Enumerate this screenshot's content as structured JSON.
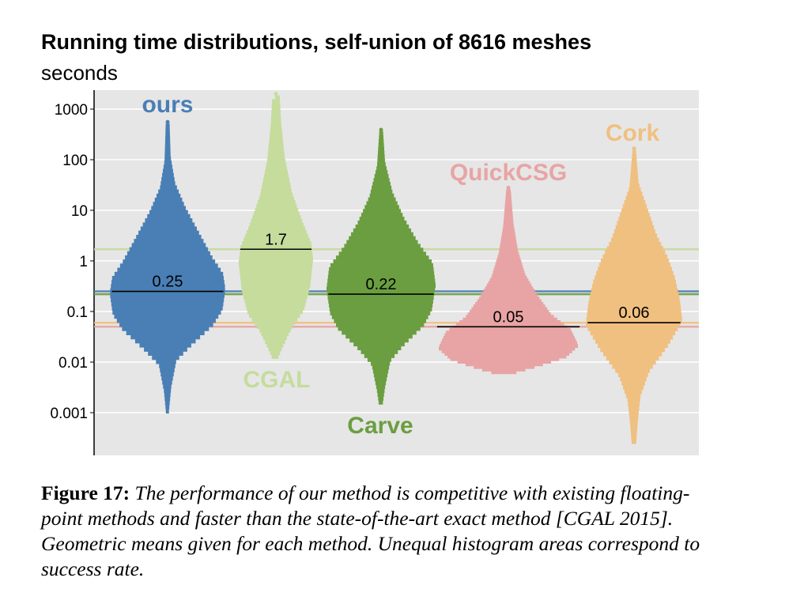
{
  "chart_data": {
    "type": "violin",
    "title": "Running time distributions, self-union of 8616 meshes",
    "subtitle": "seconds",
    "yscale": "log",
    "ylim": [
      0.0002,
      2000
    ],
    "yticks": [
      "0.001",
      "0.01",
      "0.1",
      "1",
      "10",
      "100",
      "1000"
    ],
    "ytick_values": [
      0.001,
      0.01,
      0.1,
      1,
      10,
      100,
      1000
    ],
    "grid": true,
    "series": [
      {
        "name": "ours",
        "color": "#4a7fb5",
        "mean": 0.25,
        "mean_label": "0.25",
        "min": 0.001,
        "max": 500,
        "profile": [
          [
            0.001,
            0.01
          ],
          [
            0.003,
            0.05
          ],
          [
            0.01,
            0.14
          ],
          [
            0.02,
            0.4
          ],
          [
            0.05,
            0.78
          ],
          [
            0.1,
            0.95
          ],
          [
            0.25,
            1.0
          ],
          [
            0.5,
            0.96
          ],
          [
            1,
            0.78
          ],
          [
            3,
            0.55
          ],
          [
            10,
            0.3
          ],
          [
            30,
            0.12
          ],
          [
            100,
            0.04
          ],
          [
            500,
            0.02
          ]
        ]
      },
      {
        "name": "CGAL",
        "color": "#c5dc9d",
        "mean": 1.7,
        "mean_label": "1.7",
        "min": 0.012,
        "max": 1800,
        "profile": [
          [
            0.012,
            0.05
          ],
          [
            0.02,
            0.18
          ],
          [
            0.05,
            0.45
          ],
          [
            0.1,
            0.75
          ],
          [
            0.3,
            0.92
          ],
          [
            1,
            1.0
          ],
          [
            2,
            0.95
          ],
          [
            5,
            0.72
          ],
          [
            20,
            0.42
          ],
          [
            100,
            0.22
          ],
          [
            500,
            0.12
          ],
          [
            1800,
            0.08
          ]
        ]
      },
      {
        "name": "Carve",
        "color": "#6b9e40",
        "mean": 0.22,
        "mean_label": "0.22",
        "min": 0.0015,
        "max": 350,
        "profile": [
          [
            0.0015,
            0.02
          ],
          [
            0.003,
            0.06
          ],
          [
            0.01,
            0.16
          ],
          [
            0.02,
            0.4
          ],
          [
            0.05,
            0.78
          ],
          [
            0.1,
            0.93
          ],
          [
            0.3,
            1.0
          ],
          [
            0.8,
            0.95
          ],
          [
            2,
            0.68
          ],
          [
            6,
            0.42
          ],
          [
            20,
            0.2
          ],
          [
            80,
            0.06
          ],
          [
            350,
            0.02
          ]
        ]
      },
      {
        "name": "QuickCSG",
        "color": "#e8a4a4",
        "mean": 0.05,
        "mean_label": "0.05",
        "min": 0.006,
        "max": 25,
        "profile": [
          [
            0.006,
            0.1
          ],
          [
            0.008,
            0.4
          ],
          [
            0.012,
            0.78
          ],
          [
            0.02,
            0.95
          ],
          [
            0.04,
            0.85
          ],
          [
            0.08,
            0.58
          ],
          [
            0.2,
            0.38
          ],
          [
            0.5,
            0.22
          ],
          [
            1.5,
            0.12
          ],
          [
            5,
            0.06
          ],
          [
            25,
            0.02
          ]
        ]
      },
      {
        "name": "Cork",
        "color": "#f0c080",
        "mean": 0.06,
        "mean_label": "0.06",
        "min": 0.00025,
        "max": 150,
        "profile": [
          [
            0.00025,
            0.03
          ],
          [
            0.0006,
            0.06
          ],
          [
            0.002,
            0.12
          ],
          [
            0.006,
            0.3
          ],
          [
            0.02,
            0.7
          ],
          [
            0.06,
            1.0
          ],
          [
            0.15,
            0.95
          ],
          [
            0.4,
            0.85
          ],
          [
            1,
            0.7
          ],
          [
            3,
            0.45
          ],
          [
            10,
            0.26
          ],
          [
            30,
            0.08
          ],
          [
            150,
            0.02
          ]
        ]
      }
    ]
  },
  "caption": {
    "lead": "Figure 17:",
    "body": "The performance of our method is competitive with existing floating-point methods and faster than the state-of-the-art exact method [CGAL 2015]. Geometric means given for each method. Unequal histogram areas correspond to success rate."
  }
}
